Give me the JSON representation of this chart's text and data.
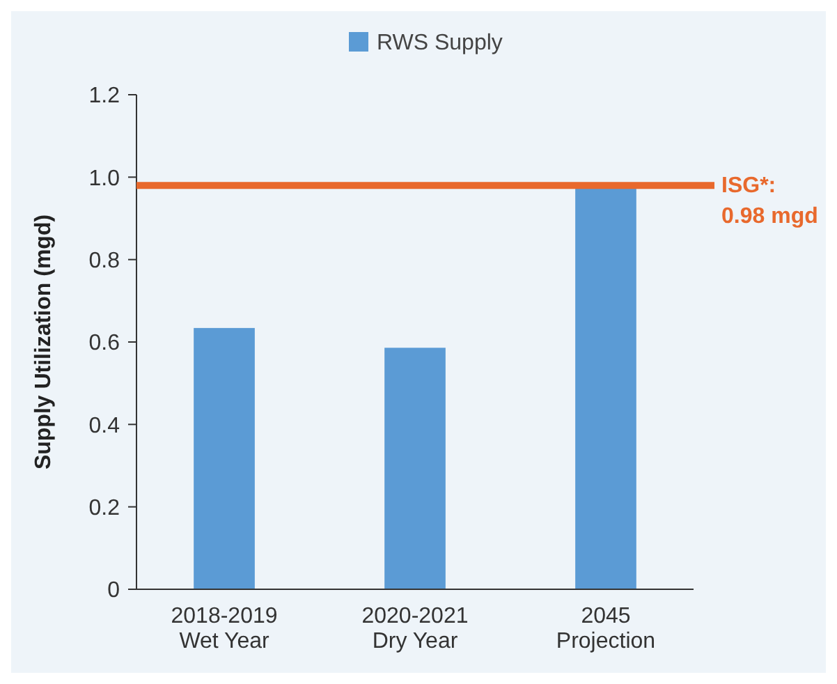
{
  "chart_data": {
    "type": "bar",
    "ylabel": "Supply Utilization (mgd)",
    "categories": [
      "2018-2019 Wet Year",
      "2020-2021 Dry Year",
      "2045 Projection"
    ],
    "series": [
      {
        "name": "RWS Supply",
        "color": "#5b9bd5",
        "values": [
          0.634,
          0.586,
          0.975
        ]
      }
    ],
    "ylim": [
      0,
      1.2
    ],
    "yticks": [
      {
        "value": 0,
        "label": "0"
      },
      {
        "value": 0.2,
        "label": "0.2"
      },
      {
        "value": 0.4,
        "label": "0.4"
      },
      {
        "value": 0.6,
        "label": "0.6"
      },
      {
        "value": 0.8,
        "label": "0.8"
      },
      {
        "value": 1,
        "label": "1.0"
      },
      {
        "value": 1.2,
        "label": "1.2"
      }
    ],
    "ref_lines": [
      {
        "axis": "y",
        "value": 0.98,
        "label": "ISG*: 0.98 mgd",
        "color": "#e8692d"
      }
    ],
    "legend": "top",
    "grid": false
  }
}
